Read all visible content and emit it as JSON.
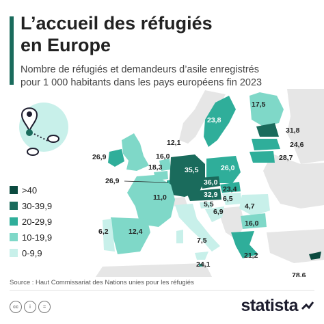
{
  "title_line1": "L’accueil des réfugiés",
  "title_line2": "en Europe",
  "subtitle_line1": "Nombre de réfugiés et demandeurs d’asile enregistrés",
  "subtitle_line2": "pour 1 000 habitants dans les pays européens fin 2023",
  "legend": [
    {
      "label": ">40",
      "color": "#0b4a3f"
    },
    {
      "label": "30-39,9",
      "color": "#1a6b5c"
    },
    {
      "label": "20-29,9",
      "color": "#2fae9a"
    },
    {
      "label": "10-19,9",
      "color": "#7fd8c8"
    },
    {
      "label": "0-9,9",
      "color": "#c8f0ea"
    }
  ],
  "no_data_color": "#e6e6e6",
  "sea_color": "#ffffff",
  "values": {
    "ireland": "26,9",
    "uk": "16,0",
    "netherlands": "18,3",
    "belgium": "12,1",
    "luxembourg": "26,9",
    "france": "11,0",
    "spain": "12,4",
    "portugal": "6,2",
    "germany": "35,5",
    "poland": "26,0",
    "czechia": "36,0",
    "austria": "32,9",
    "slovakia": "23,4",
    "hungary": "6,5",
    "slovenia": "5,5",
    "croatia": "6,9",
    "romania": "4,7",
    "bulgaria": "16,0",
    "italy": "7,5",
    "malta": "24,1",
    "greece": "21,2",
    "cyprus": "78,6",
    "sweden": "23,8",
    "finland": "17,5",
    "estonia": "31,8",
    "latvia": "24,6",
    "lithuania": "28,7"
  },
  "source": "Source : Haut Commissariat des Nations unies pour les réfugiés",
  "brand": "statista",
  "icons": [
    "location-pin-icon",
    "creative-commons-icon",
    "attribution-icon",
    "equals-icon",
    "statista-logo-icon"
  ]
}
